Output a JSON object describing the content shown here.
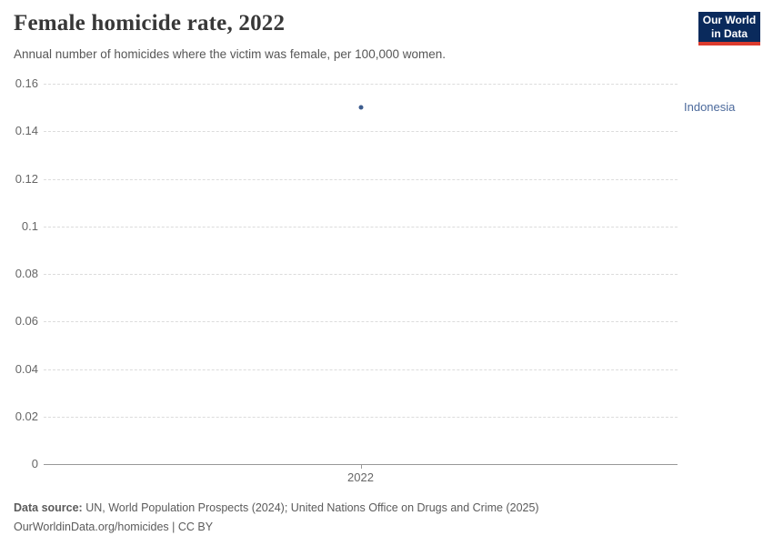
{
  "header": {
    "title": "Female homicide rate, 2022",
    "subtitle": "Annual number of homicides where the victim was female, per 100,000 women.",
    "logo": {
      "line1": "Our World",
      "line2": "in Data"
    }
  },
  "colors": {
    "logo_bg": "#0a2a5c",
    "logo_stripe": "#dc3b2e",
    "series_indonesia": "#3d5c8e",
    "entity_label": "#4c6a9c",
    "gridline": "#dcdcdc",
    "axis": "#999999",
    "tick_text": "#666666"
  },
  "chart_data": {
    "type": "scatter",
    "title": "Female homicide rate, 2022",
    "subtitle": "Annual number of homicides where the victim was female, per 100,000 women.",
    "xlabel": "",
    "ylabel": "",
    "ylim": [
      0,
      0.16
    ],
    "grid": "dashed-horizontal",
    "legend_position": "right-of-point",
    "yticks": {
      "values": [
        0.16,
        0.14,
        0.12,
        0.1,
        0.08,
        0.06,
        0.04,
        0.02,
        0
      ],
      "labels": [
        "0.16",
        "0.14",
        "0.12",
        "0.1",
        "0.08",
        "0.06",
        "0.04",
        "0.02",
        "0"
      ]
    },
    "xticks": {
      "labels": [
        "2022"
      ]
    },
    "series": [
      {
        "name": "Indonesia",
        "x": [
          2022
        ],
        "values": [
          0.15
        ]
      }
    ]
  },
  "footer": {
    "source_label": "Data source:",
    "source_text": " UN, World Population Prospects (2024); United Nations Office on Drugs and Crime (2025)",
    "line2": "OurWorldinData.org/homicides | CC BY"
  }
}
